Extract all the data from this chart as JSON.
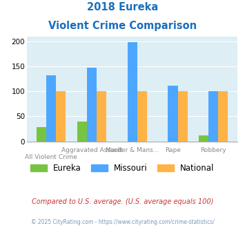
{
  "title_line1": "2018 Eureka",
  "title_line2": "Violent Crime Comparison",
  "eureka": [
    28,
    40,
    0,
    0,
    12
  ],
  "missouri": [
    132,
    147,
    199,
    112,
    100
  ],
  "national": [
    100,
    100,
    100,
    100,
    100
  ],
  "eureka_color": "#76c442",
  "missouri_color": "#4da6ff",
  "national_color": "#ffb347",
  "bg_color": "#ddeef4",
  "ylim": [
    0,
    210
  ],
  "yticks": [
    0,
    50,
    100,
    150,
    200
  ],
  "legend_labels": [
    "Eureka",
    "Missouri",
    "National"
  ],
  "top_labels": [
    "",
    "Aggravated Assault",
    "Murder & Mans...",
    "Rape",
    "Robbery"
  ],
  "bottom_labels": [
    "All Violent Crime",
    "",
    "",
    "",
    ""
  ],
  "footnote1": "Compared to U.S. average. (U.S. average equals 100)",
  "footnote2": "© 2025 CityRating.com - https://www.cityrating.com/crime-statistics/",
  "title_color": "#1a6fbd",
  "footnote1_color": "#cc3333",
  "footnote2_color": "#7799bb"
}
